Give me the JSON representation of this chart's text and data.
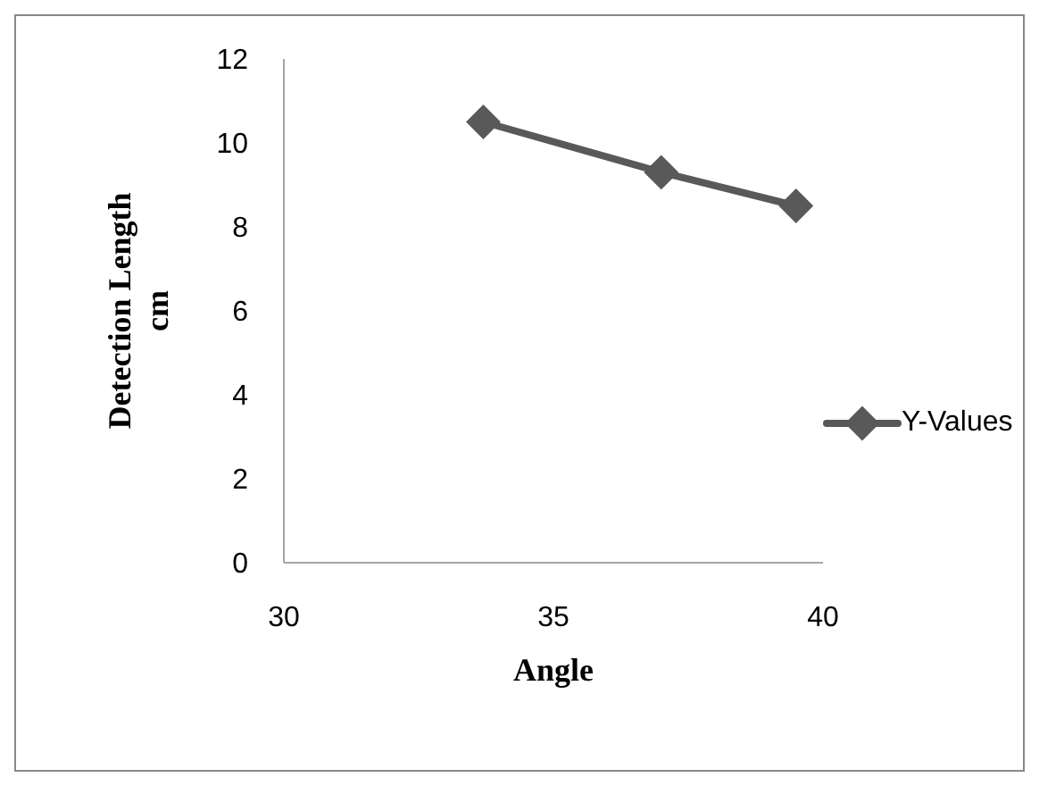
{
  "chart_data": {
    "type": "line",
    "xlabel": "Angle",
    "ylabel": "Detection Length cm",
    "x": [
      33.7,
      37,
      39.5
    ],
    "series": [
      {
        "name": "Y-Values",
        "color": "#595959",
        "values": [
          10.5,
          9.3,
          8.5
        ]
      }
    ],
    "xlim": [
      30,
      40
    ],
    "xticks": [
      30,
      35,
      40
    ],
    "ylim": [
      0,
      12
    ],
    "yticks": [
      0,
      2,
      4,
      6,
      8,
      10,
      12
    ],
    "grid": false,
    "legend": "right",
    "marker": "diamond",
    "line_style": "solid"
  }
}
